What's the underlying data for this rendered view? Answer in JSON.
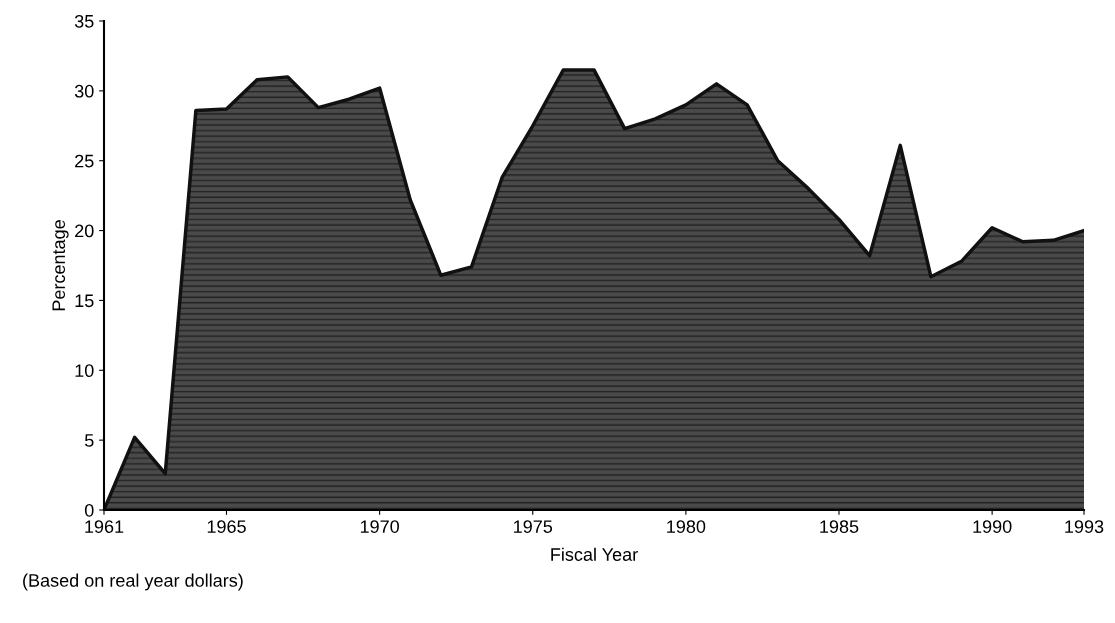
{
  "chart_data": {
    "type": "area",
    "xlabel": "Fiscal Year",
    "ylabel": "Percentage",
    "x": [
      1961,
      1962,
      1963,
      1964,
      1965,
      1966,
      1967,
      1968,
      1969,
      1970,
      1971,
      1972,
      1973,
      1974,
      1975,
      1976,
      1977,
      1978,
      1979,
      1980,
      1981,
      1982,
      1983,
      1984,
      1985,
      1986,
      1987,
      1988,
      1989,
      1990,
      1991,
      1992,
      1993
    ],
    "series": [
      {
        "color": "#4a4a4a",
        "values": [
          0,
          5.2,
          2.6,
          28.6,
          28.7,
          30.8,
          31.0,
          28.8,
          29.4,
          30.2,
          22.2,
          16.8,
          17.4,
          23.8,
          27.5,
          31.5,
          31.5,
          27.3,
          28.0,
          29.0,
          30.5,
          29.0,
          25.0,
          23.0,
          20.8,
          18.2,
          26.1,
          16.7,
          17.8,
          20.2,
          19.2,
          19.3,
          20.0
        ]
      }
    ],
    "xlim": [
      1961,
      1993
    ],
    "xticks": [
      1961,
      1965,
      1970,
      1975,
      1980,
      1985,
      1990,
      1993
    ],
    "ylim": [
      0,
      35
    ],
    "yticks": [
      0,
      5,
      10,
      15,
      20,
      25,
      30,
      35
    ],
    "grid": false,
    "legend": false,
    "annotations": [
      "(Based on real year dollars)"
    ]
  }
}
